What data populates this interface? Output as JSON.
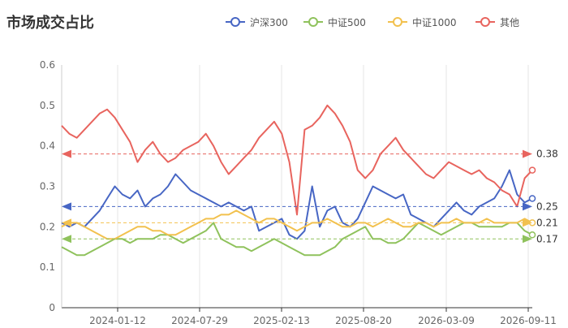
{
  "chart_data": {
    "type": "line",
    "title": "市场成交占比",
    "xlabel": "",
    "ylabel": "",
    "ylim": [
      0,
      0.6
    ],
    "y_ticks": [
      0,
      0.1,
      0.2,
      0.3,
      0.4,
      0.5,
      0.6
    ],
    "x_tick_labels": [
      "2024-01-12",
      "2024-07-29",
      "2025-02-13",
      "2025-08-20",
      "2026-03-09",
      "2026-09-11"
    ],
    "grid": "vertical",
    "legend_position": "top-right",
    "series": [
      {
        "name": "沪深300",
        "color": "#4766c4",
        "values": [
          0.21,
          0.2,
          0.21,
          0.2,
          0.22,
          0.24,
          0.27,
          0.3,
          0.28,
          0.27,
          0.29,
          0.25,
          0.27,
          0.28,
          0.3,
          0.33,
          0.31,
          0.29,
          0.28,
          0.27,
          0.26,
          0.25,
          0.26,
          0.25,
          0.24,
          0.25,
          0.19,
          0.2,
          0.21,
          0.22,
          0.18,
          0.17,
          0.19,
          0.3,
          0.2,
          0.24,
          0.25,
          0.21,
          0.2,
          0.22,
          0.26,
          0.3,
          0.29,
          0.28,
          0.27,
          0.28,
          0.23,
          0.22,
          0.21,
          0.2,
          0.22,
          0.24,
          0.26,
          0.24,
          0.23,
          0.25,
          0.26,
          0.27,
          0.3,
          0.34,
          0.28,
          0.26,
          0.27
        ]
      },
      {
        "name": "中证500",
        "color": "#8fc25c",
        "values": [
          0.15,
          0.14,
          0.13,
          0.13,
          0.14,
          0.15,
          0.16,
          0.17,
          0.17,
          0.16,
          0.17,
          0.17,
          0.17,
          0.18,
          0.18,
          0.17,
          0.16,
          0.17,
          0.18,
          0.19,
          0.21,
          0.17,
          0.16,
          0.15,
          0.15,
          0.14,
          0.15,
          0.16,
          0.17,
          0.16,
          0.15,
          0.14,
          0.13,
          0.13,
          0.13,
          0.14,
          0.15,
          0.17,
          0.18,
          0.19,
          0.2,
          0.17,
          0.17,
          0.16,
          0.16,
          0.17,
          0.19,
          0.21,
          0.2,
          0.19,
          0.18,
          0.19,
          0.2,
          0.21,
          0.21,
          0.2,
          0.2,
          0.2,
          0.2,
          0.21,
          0.21,
          0.19,
          0.18
        ]
      },
      {
        "name": "中证1000",
        "color": "#f2c14e",
        "values": [
          0.2,
          0.21,
          0.21,
          0.2,
          0.19,
          0.18,
          0.17,
          0.17,
          0.18,
          0.19,
          0.2,
          0.2,
          0.19,
          0.19,
          0.18,
          0.18,
          0.19,
          0.2,
          0.21,
          0.22,
          0.22,
          0.23,
          0.23,
          0.24,
          0.23,
          0.22,
          0.21,
          0.22,
          0.22,
          0.21,
          0.2,
          0.19,
          0.2,
          0.21,
          0.21,
          0.22,
          0.21,
          0.2,
          0.2,
          0.21,
          0.21,
          0.2,
          0.21,
          0.22,
          0.21,
          0.2,
          0.2,
          0.21,
          0.21,
          0.2,
          0.21,
          0.21,
          0.22,
          0.21,
          0.21,
          0.21,
          0.22,
          0.21,
          0.21,
          0.21,
          0.21,
          0.22,
          0.21
        ]
      },
      {
        "name": "其他",
        "color": "#e8645e",
        "values": [
          0.45,
          0.43,
          0.42,
          0.44,
          0.46,
          0.48,
          0.49,
          0.47,
          0.44,
          0.41,
          0.36,
          0.39,
          0.41,
          0.38,
          0.36,
          0.37,
          0.39,
          0.4,
          0.41,
          0.43,
          0.4,
          0.36,
          0.33,
          0.35,
          0.37,
          0.39,
          0.42,
          0.44,
          0.46,
          0.43,
          0.36,
          0.23,
          0.44,
          0.45,
          0.47,
          0.5,
          0.48,
          0.45,
          0.41,
          0.34,
          0.32,
          0.34,
          0.38,
          0.4,
          0.42,
          0.39,
          0.37,
          0.35,
          0.33,
          0.32,
          0.34,
          0.36,
          0.35,
          0.34,
          0.33,
          0.34,
          0.32,
          0.31,
          0.29,
          0.28,
          0.25,
          0.32,
          0.34
        ]
      }
    ],
    "reference_lines": [
      {
        "series": "其他",
        "value": 0.38,
        "label": "0.38"
      },
      {
        "series": "沪深300",
        "value": 0.25,
        "label": "0.25"
      },
      {
        "series": "中证1000",
        "value": 0.21,
        "label": "0.21"
      },
      {
        "series": "中证500",
        "value": 0.17,
        "label": "0.17"
      }
    ]
  }
}
